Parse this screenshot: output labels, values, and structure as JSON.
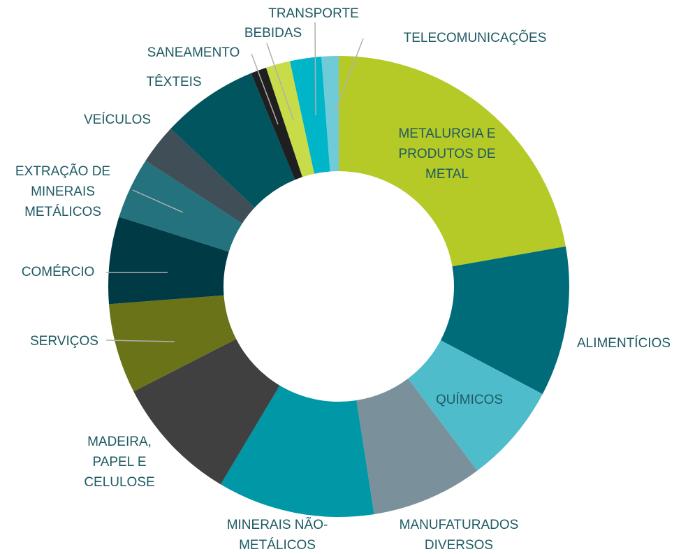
{
  "chart_data": {
    "type": "donut",
    "categories": [
      [
        "METALURGIA E",
        "PRODUTOS DE",
        "METAL"
      ],
      [
        "ALIMENTÍCIOS"
      ],
      [
        "QUÍMICOS"
      ],
      [
        "MANUFATURADOS",
        "DIVERSOS"
      ],
      [
        "MINERAIS NÃO-",
        "METÁLICOS"
      ],
      [
        "MADEIRA,",
        "PAPEL E",
        "CELULOSE"
      ],
      [
        "SERVIÇOS"
      ],
      [
        "COMÉRCIO"
      ],
      [
        "EXTRAÇÃO DE",
        "MINERAIS",
        "METÁLICOS"
      ],
      [
        "VEÍCULOS"
      ],
      [
        "TÊXTEIS"
      ],
      [
        "SANEAMENTO"
      ],
      [
        "BEBIDAS"
      ],
      [
        "TRANSPORTE"
      ],
      [
        "TELECOMUNICAÇÕES"
      ]
    ],
    "values": [
      22.2,
      10.5,
      7,
      7.8,
      11,
      8.9,
      6.3,
      6.1,
      4.3,
      2.8,
      6.8,
      1.1,
      1.7,
      2.2,
      1.2
    ],
    "colors": [
      "#b5c927",
      "#006c7a",
      "#4fbccb",
      "#7a909b",
      "#0097a7",
      "#404040",
      "#6b7318",
      "#003b45",
      "#24727e",
      "#3f4e57",
      "#00555f",
      "#1f1f1f",
      "#c8dc4a",
      "#00b5c8",
      "#6fcbd8"
    ]
  }
}
